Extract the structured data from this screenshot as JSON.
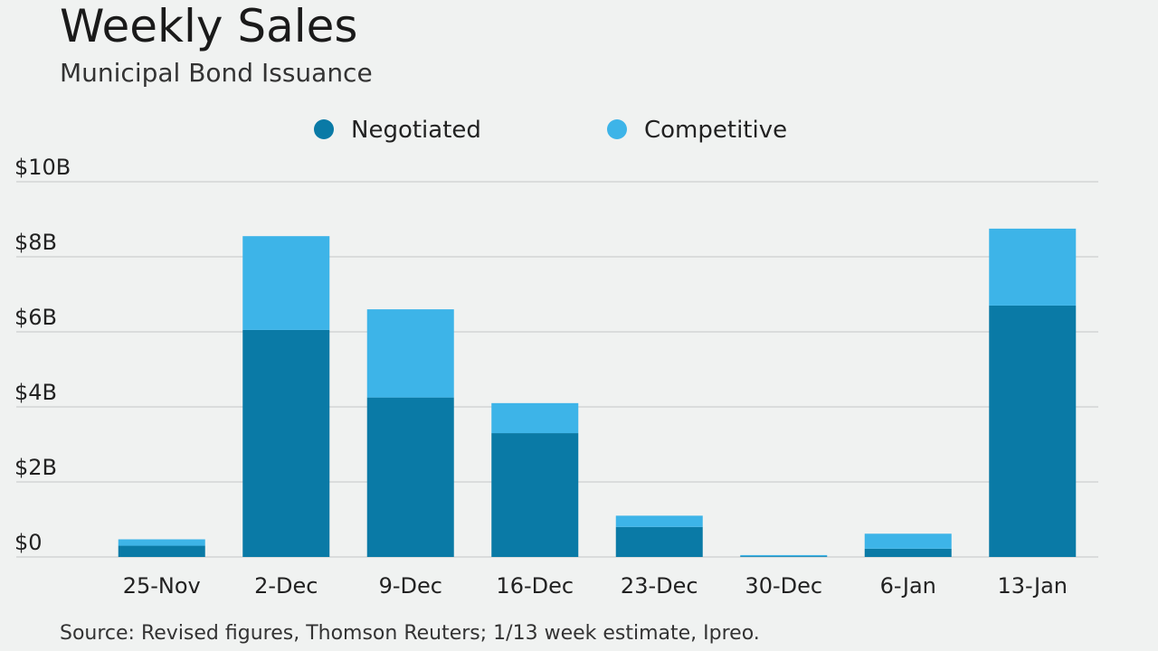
{
  "title": "Weekly Sales",
  "subtitle": "Municipal Bond Issuance",
  "source": "Source: Revised figures, Thomson Reuters; 1/13 week estimate, Ipreo.",
  "colors": {
    "negotiated": "#0a7aa6",
    "competitive": "#3db4e8",
    "grid": "#c4c7c6"
  },
  "chart_data": {
    "type": "bar",
    "stacked": true,
    "categories": [
      "25-Nov",
      "2-Dec",
      "9-Dec",
      "16-Dec",
      "23-Dec",
      "30-Dec",
      "6-Jan",
      "13-Jan"
    ],
    "series": [
      {
        "name": "Negotiated",
        "values": [
          0.3,
          6.05,
          4.25,
          3.3,
          0.8,
          0.02,
          0.22,
          6.7
        ]
      },
      {
        "name": "Competitive",
        "values": [
          0.17,
          2.5,
          2.35,
          0.8,
          0.3,
          0.03,
          0.4,
          2.05
        ]
      }
    ],
    "ylim": [
      0,
      10
    ],
    "yticks": [
      0,
      2,
      4,
      6,
      8,
      10
    ],
    "ytick_labels": [
      "$0",
      "$2B",
      "$4B",
      "$6B",
      "$8B",
      "$10B"
    ],
    "grid": true,
    "legend_position": "top-center"
  }
}
